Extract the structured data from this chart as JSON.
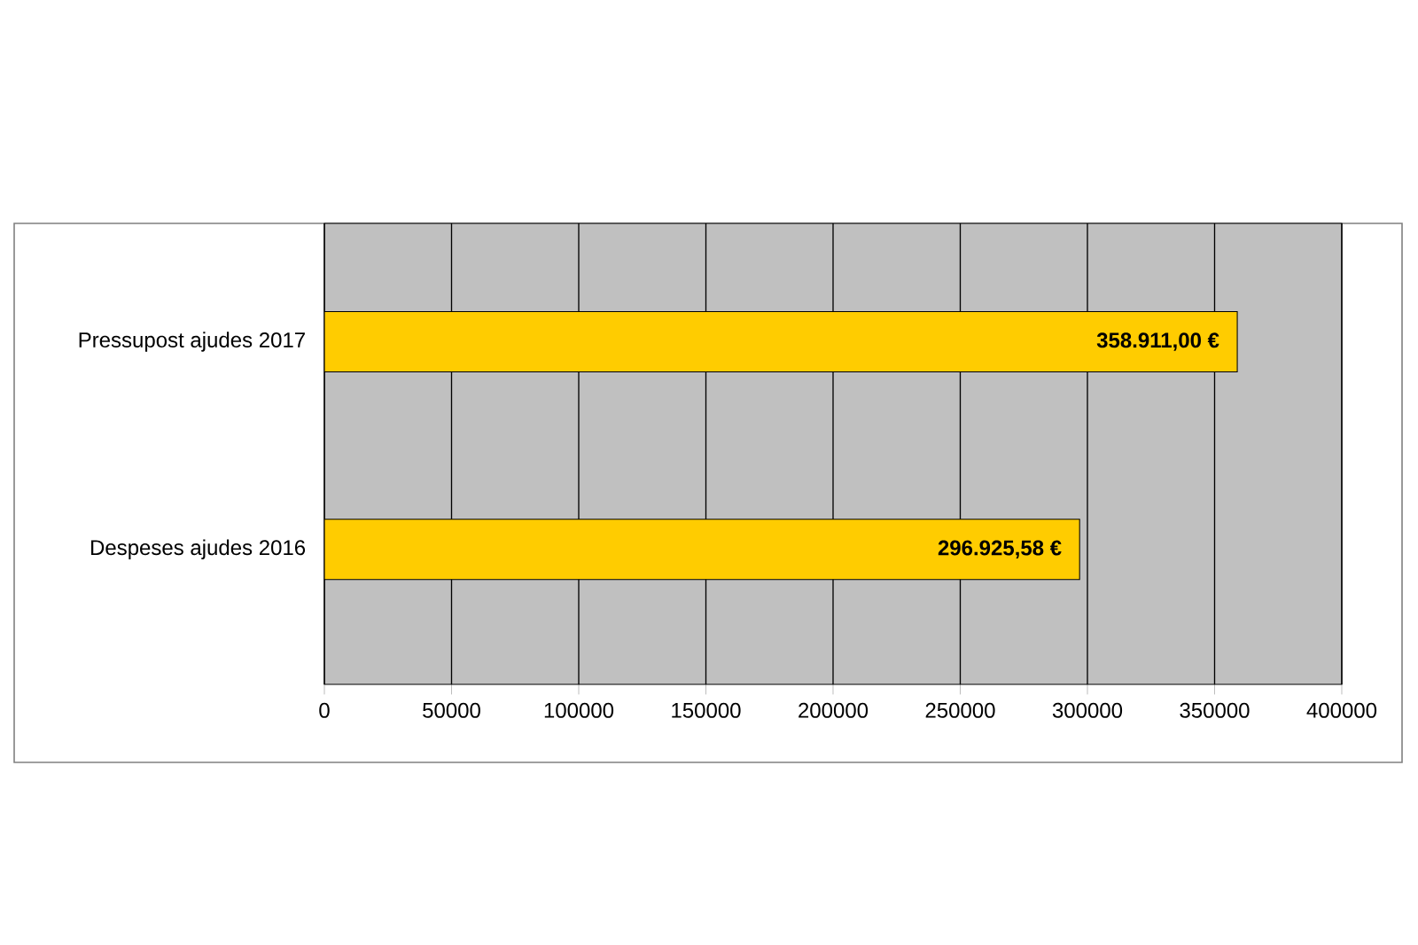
{
  "chart_data": {
    "type": "bar",
    "orientation": "horizontal",
    "categories": [
      "Pressupost ajudes 2017",
      "Despeses ajudes 2016"
    ],
    "values": [
      358911.0,
      296925.58
    ],
    "value_labels": [
      "358.911,00 €",
      "296.925,58 €"
    ],
    "color": "#ffcc00",
    "xlim": [
      0,
      400000
    ],
    "xticks": [
      0,
      50000,
      100000,
      150000,
      200000,
      250000,
      300000,
      350000,
      400000
    ],
    "grid": "x"
  }
}
